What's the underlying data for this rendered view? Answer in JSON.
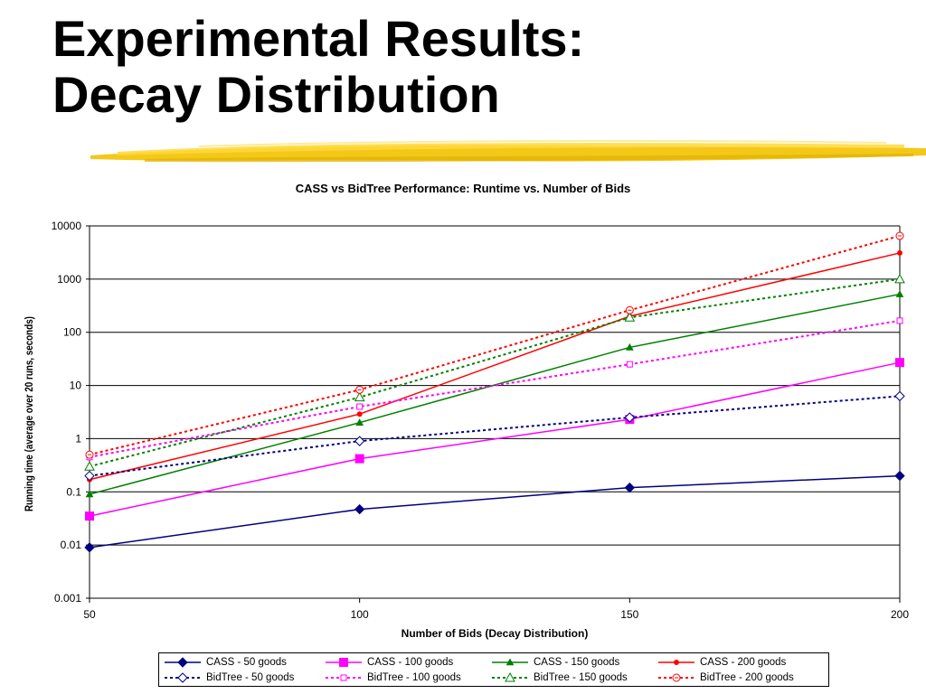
{
  "slide": {
    "title_line1": "Experimental Results:",
    "title_line2": "Decay Distribution",
    "brush_color": "#F2C200"
  },
  "chart_data": {
    "type": "line",
    "title": "CASS vs BidTree Performance:  Runtime vs. Number of Bids",
    "xlabel": "Number of Bids (Decay Distribution)",
    "ylabel": "Running time (average over 20 runs, seconds)",
    "x": [
      50,
      100,
      150,
      200
    ],
    "x_ticks": [
      "50",
      "100",
      "150",
      "200"
    ],
    "y_scale": "log",
    "ylim": [
      0.001,
      10000
    ],
    "y_ticks": [
      "0.001",
      "0.01",
      "0.1",
      "1",
      "10",
      "100",
      "1000",
      "10000"
    ],
    "grid": "horizontal",
    "legend_position": "bottom",
    "series": [
      {
        "name": "CASS - 50 goods",
        "values": [
          0.009,
          0.047,
          0.12,
          0.2
        ],
        "color": "#000080",
        "dash": "solid",
        "marker": "diamond-filled"
      },
      {
        "name": "CASS - 100 goods",
        "values": [
          0.035,
          0.42,
          2.3,
          27
        ],
        "color": "#FF00FF",
        "dash": "solid",
        "marker": "square-filled"
      },
      {
        "name": "CASS - 150 goods",
        "values": [
          0.09,
          2.0,
          52,
          520
        ],
        "color": "#008000",
        "dash": "solid",
        "marker": "triangle-filled"
      },
      {
        "name": "CASS - 200 goods",
        "values": [
          0.17,
          2.9,
          200,
          3100
        ],
        "color": "#FF0000",
        "dash": "solid",
        "marker": "circle-filled"
      },
      {
        "name": "BidTree - 50 goods",
        "values": [
          0.2,
          0.9,
          2.5,
          6.3
        ],
        "color": "#000080",
        "dash": "dashed",
        "marker": "diamond-open"
      },
      {
        "name": "BidTree - 100 goods",
        "values": [
          0.45,
          4.0,
          25,
          165
        ],
        "color": "#FF00FF",
        "dash": "dashed",
        "marker": "square-open"
      },
      {
        "name": "BidTree - 150 goods",
        "values": [
          0.3,
          6.0,
          190,
          1000
        ],
        "color": "#008000",
        "dash": "dashed",
        "marker": "triangle-open"
      },
      {
        "name": "BidTree - 200 goods",
        "values": [
          0.5,
          8.3,
          260,
          6500
        ],
        "color": "#FF0000",
        "dash": "dashed",
        "marker": "circle-open"
      }
    ]
  }
}
